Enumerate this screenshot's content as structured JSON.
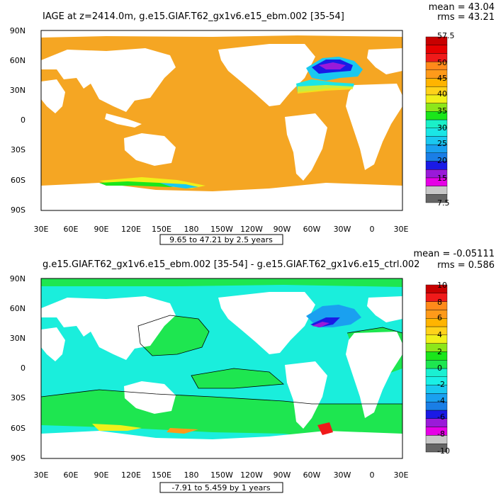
{
  "top_panel": {
    "title": "IAGE at z=2414.0m, g.e15.GIAF.T62_gx1v6.e15_ebm.002 [35-54]",
    "stats_mean": "mean = 43.04",
    "stats_rms": "rms = 43.21",
    "lat_labels": [
      "90N",
      "60N",
      "30N",
      "0",
      "30S",
      "60S",
      "90S"
    ],
    "lon_labels": [
      "30E",
      "60E",
      "90E",
      "120E",
      "150E",
      "180",
      "150W",
      "120W",
      "90W",
      "60W",
      "30W",
      "0",
      "30E"
    ],
    "contour_info": "9.65 to 47.21 by 2.5 years",
    "colorbar_labels": [
      "57.5",
      "50",
      "45",
      "40",
      "35",
      "30",
      "25",
      "20",
      "15",
      "7.5"
    ],
    "colors": [
      "#666666",
      "#c8c8c8",
      "#e600e6",
      "#9a1ad9",
      "#1a1ae6",
      "#1a7ee6",
      "#1aa0f0",
      "#1ac8f0",
      "#1ae6e6",
      "#1af0c8",
      "#1ae61a",
      "#8ce61a",
      "#f0f01a",
      "#ffd21a",
      "#ffb400",
      "#ff9a1a",
      "#ff8a1a",
      "#f01a1a",
      "#e60000",
      "#c80000"
    ]
  },
  "bottom_panel": {
    "title": "g.e15.GIAF.T62_gx1v6.e15_ebm.002 [35-54] - g.e15.GIAF.T62_gx1v6.e15_ctrl.002",
    "stats_mean": "mean = -0.05111",
    "stats_rms": "rms = 0.586",
    "lat_labels": [
      "90N",
      "60N",
      "30N",
      "0",
      "30S",
      "60S",
      "90S"
    ],
    "lon_labels": [
      "30E",
      "60E",
      "90E",
      "120E",
      "150E",
      "180",
      "150W",
      "120W",
      "90W",
      "60W",
      "30W",
      "0",
      "30E"
    ],
    "contour_info": "-7.91 to 5.459 by 1 years",
    "colorbar_labels": [
      "10",
      "8",
      "6",
      "4",
      "2",
      "0",
      "-2",
      "-4",
      "-6",
      "-8",
      "-10"
    ],
    "colors": [
      "#666666",
      "#c8c8c8",
      "#e600e6",
      "#9a1ad9",
      "#1a1ae6",
      "#1a7ee6",
      "#1aa0f0",
      "#1ac8f0",
      "#1af0e6",
      "#1af0d2",
      "#1ee650",
      "#1ae61a",
      "#8ce61a",
      "#f0f01a",
      "#ffd21a",
      "#ffb400",
      "#ff9a1a",
      "#ff8a1a",
      "#f01a1a",
      "#c80000"
    ]
  },
  "colors": {
    "ocean_top": "#f5a623",
    "ocean_bottom": "#1aeedc",
    "land": "#ffffff",
    "frame": "#000000"
  }
}
